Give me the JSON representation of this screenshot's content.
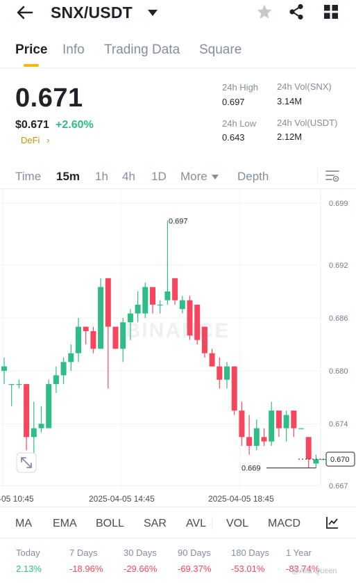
{
  "header": {
    "pair": "SNX/USDT",
    "icons": [
      "back-arrow-icon",
      "caret-down-icon",
      "star-icon",
      "share-icon",
      "grid-icon"
    ]
  },
  "tabs": [
    {
      "label": "Price",
      "active": true
    },
    {
      "label": "Info",
      "active": false
    },
    {
      "label": "Trading Data",
      "active": false
    },
    {
      "label": "Square",
      "active": false
    }
  ],
  "price": {
    "last": "0.671",
    "fiat": "$0.671",
    "change": "+2.60%",
    "tag": "DeFi",
    "tag_arrow": "›"
  },
  "stats": {
    "high_label": "24h High",
    "high_value": "0.697",
    "low_label": "24h Low",
    "low_value": "0.643",
    "vol_base_label": "24h Vol(SNX)",
    "vol_base_value": "3.14M",
    "vol_quote_label": "24h Vol(USDT)",
    "vol_quote_value": "2.12M"
  },
  "intervals": [
    {
      "label": "Time",
      "active": false
    },
    {
      "label": "15m",
      "active": true
    },
    {
      "label": "1h",
      "active": false
    },
    {
      "label": "4h",
      "active": false
    },
    {
      "label": "1D",
      "active": false
    },
    {
      "label": "More",
      "active": false
    },
    {
      "label": "Depth",
      "active": false
    }
  ],
  "chart_data": {
    "type": "candlestick",
    "y_ticks": [
      "0.699",
      "0.692",
      "0.686",
      "0.680",
      "0.674",
      "0.667"
    ],
    "x_ticks": [
      "-05 10:45",
      "2025-04-05 14:45",
      "2025-04-05 18:45"
    ],
    "ylim": [
      0.667,
      0.699
    ],
    "high_annotation": "0.697",
    "low_annotation": "0.669",
    "last_price_label": "0.670",
    "watermark": "BINANCE",
    "colors": {
      "up": "#2ebd85",
      "down": "#f6465d",
      "grid": "#f0f1f2"
    },
    "candles": [
      {
        "o": 0.68,
        "h": 0.6815,
        "l": 0.6785,
        "c": 0.6805
      },
      {
        "o": 0.6785,
        "h": 0.6785,
        "l": 0.676,
        "c": 0.6785
      },
      {
        "o": 0.6785,
        "h": 0.679,
        "l": 0.678,
        "c": 0.6785
      },
      {
        "o": 0.6785,
        "h": 0.6785,
        "l": 0.671,
        "c": 0.6725
      },
      {
        "o": 0.6725,
        "h": 0.6765,
        "l": 0.6705,
        "c": 0.6735
      },
      {
        "o": 0.6735,
        "h": 0.676,
        "l": 0.673,
        "c": 0.674
      },
      {
        "o": 0.6735,
        "h": 0.679,
        "l": 0.6735,
        "c": 0.6785
      },
      {
        "o": 0.6785,
        "h": 0.6805,
        "l": 0.6775,
        "c": 0.6795
      },
      {
        "o": 0.6795,
        "h": 0.6815,
        "l": 0.6785,
        "c": 0.681
      },
      {
        "o": 0.681,
        "h": 0.683,
        "l": 0.68,
        "c": 0.682
      },
      {
        "o": 0.682,
        "h": 0.686,
        "l": 0.681,
        "c": 0.685
      },
      {
        "o": 0.685,
        "h": 0.685,
        "l": 0.683,
        "c": 0.6845
      },
      {
        "o": 0.6845,
        "h": 0.685,
        "l": 0.682,
        "c": 0.6825
      },
      {
        "o": 0.6825,
        "h": 0.6905,
        "l": 0.6825,
        "c": 0.6895
      },
      {
        "o": 0.6905,
        "h": 0.6905,
        "l": 0.678,
        "c": 0.685
      },
      {
        "o": 0.685,
        "h": 0.685,
        "l": 0.6825,
        "c": 0.6825
      },
      {
        "o": 0.6825,
        "h": 0.686,
        "l": 0.681,
        "c": 0.6855
      },
      {
        "o": 0.6855,
        "h": 0.687,
        "l": 0.6835,
        "c": 0.6865
      },
      {
        "o": 0.6865,
        "h": 0.689,
        "l": 0.6855,
        "c": 0.6875
      },
      {
        "o": 0.6865,
        "h": 0.69,
        "l": 0.686,
        "c": 0.6895
      },
      {
        "o": 0.6895,
        "h": 0.6895,
        "l": 0.6865,
        "c": 0.6875
      },
      {
        "o": 0.6875,
        "h": 0.688,
        "l": 0.6865,
        "c": 0.6875
      },
      {
        "o": 0.688,
        "h": 0.697,
        "l": 0.6875,
        "c": 0.689
      },
      {
        "o": 0.6905,
        "h": 0.6905,
        "l": 0.6875,
        "c": 0.688
      },
      {
        "o": 0.687,
        "h": 0.6885,
        "l": 0.6865,
        "c": 0.688
      },
      {
        "o": 0.688,
        "h": 0.6885,
        "l": 0.6835,
        "c": 0.684
      },
      {
        "o": 0.6875,
        "h": 0.6875,
        "l": 0.683,
        "c": 0.6835
      },
      {
        "o": 0.685,
        "h": 0.685,
        "l": 0.6815,
        "c": 0.682
      },
      {
        "o": 0.682,
        "h": 0.6825,
        "l": 0.6805,
        "c": 0.6805
      },
      {
        "o": 0.6805,
        "h": 0.6815,
        "l": 0.678,
        "c": 0.679
      },
      {
        "o": 0.679,
        "h": 0.681,
        "l": 0.678,
        "c": 0.6805
      },
      {
        "o": 0.6805,
        "h": 0.6805,
        "l": 0.675,
        "c": 0.6755
      },
      {
        "o": 0.6755,
        "h": 0.6765,
        "l": 0.6715,
        "c": 0.6725
      },
      {
        "o": 0.6725,
        "h": 0.675,
        "l": 0.6705,
        "c": 0.6715
      },
      {
        "o": 0.6715,
        "h": 0.6745,
        "l": 0.671,
        "c": 0.6735
      },
      {
        "o": 0.6725,
        "h": 0.6735,
        "l": 0.6715,
        "c": 0.672
      },
      {
        "o": 0.672,
        "h": 0.6765,
        "l": 0.6715,
        "c": 0.6755
      },
      {
        "o": 0.6755,
        "h": 0.6755,
        "l": 0.6725,
        "c": 0.6735
      },
      {
        "o": 0.6735,
        "h": 0.6755,
        "l": 0.672,
        "c": 0.675
      },
      {
        "o": 0.6755,
        "h": 0.6755,
        "l": 0.6725,
        "c": 0.6735
      },
      {
        "o": 0.6735,
        "h": 0.6735,
        "l": 0.6735,
        "c": 0.6735
      },
      {
        "o": 0.6725,
        "h": 0.6725,
        "l": 0.669,
        "c": 0.67
      },
      {
        "o": 0.6695,
        "h": 0.6705,
        "l": 0.669,
        "c": 0.67
      },
      {
        "o": 0.67,
        "h": 0.67,
        "l": 0.67,
        "c": 0.67
      }
    ]
  },
  "indicators": [
    "MA",
    "EMA",
    "BOLL",
    "SAR",
    "AVL",
    "VOL",
    "MACD"
  ],
  "performance": [
    {
      "label": "Today",
      "value": "2.13%",
      "color": "#2ebd85"
    },
    {
      "label": "7 Days",
      "value": "-18.96%",
      "color": "#f6465d"
    },
    {
      "label": "30 Days",
      "value": "-29.66%",
      "color": "#f6465d"
    },
    {
      "label": "90 Days",
      "value": "-69.37%",
      "color": "#f6465d"
    },
    {
      "label": "180 Days",
      "value": "-53.01%",
      "color": "#f6465d"
    },
    {
      "label": "1 Year",
      "value": "-83.74%",
      "color": "#f6465d"
    }
  ],
  "watermark_credit": "@Alia Queen"
}
